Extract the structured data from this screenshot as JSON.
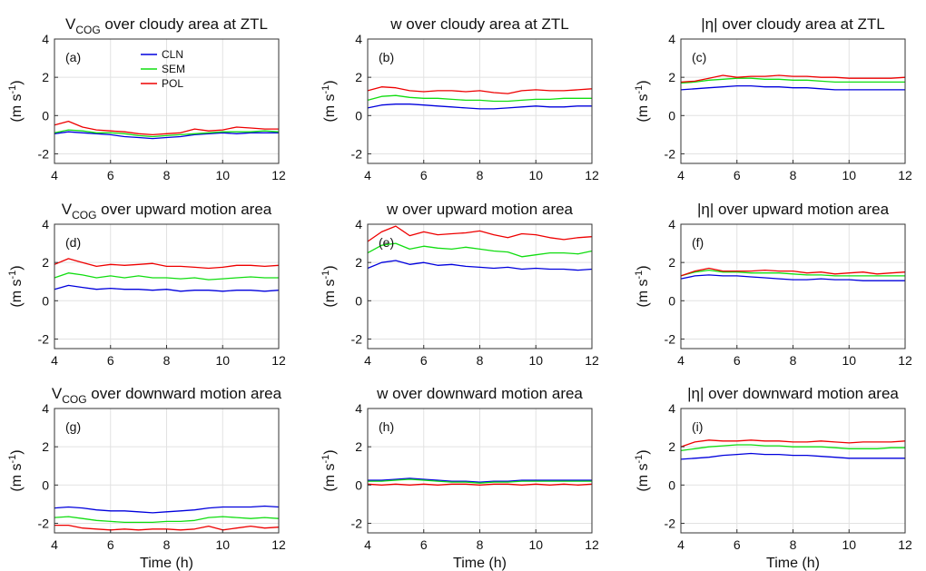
{
  "figure": {
    "xlabel": "Time (h)",
    "ylabel": "(m s-1)"
  },
  "legend": [
    "CLN",
    "SEM",
    "POL"
  ],
  "colors": {
    "CLN": "#0000dd",
    "SEM": "#11dd11",
    "POL": "#ee0000"
  },
  "chart_data": [
    {
      "type": "line",
      "panel": "(a)",
      "title": "V_COG over cloudy area at ZTL",
      "xlim": [
        4,
        12
      ],
      "ylim": [
        -2.5,
        4
      ],
      "xticks": [
        4,
        6,
        8,
        10,
        12
      ],
      "yticks": [
        -2,
        0,
        2,
        4
      ],
      "grid": true,
      "legend_placement": "top-center",
      "x": [
        4,
        4.5,
        5,
        5.5,
        6,
        6.5,
        7,
        7.5,
        8,
        8.5,
        9,
        9.5,
        10,
        10.5,
        11,
        11.5,
        12
      ],
      "series": [
        {
          "name": "CLN",
          "values": [
            -0.95,
            -0.85,
            -0.9,
            -0.95,
            -1.0,
            -1.1,
            -1.15,
            -1.2,
            -1.15,
            -1.1,
            -1.0,
            -0.95,
            -0.9,
            -0.95,
            -0.9,
            -0.9,
            -0.9
          ]
        },
        {
          "name": "SEM",
          "values": [
            -0.9,
            -0.75,
            -0.8,
            -0.9,
            -0.9,
            -0.95,
            -1.05,
            -1.1,
            -1.05,
            -1.0,
            -0.95,
            -0.9,
            -0.85,
            -0.85,
            -0.85,
            -0.8,
            -0.85
          ]
        },
        {
          "name": "POL",
          "values": [
            -0.5,
            -0.3,
            -0.6,
            -0.75,
            -0.8,
            -0.85,
            -0.95,
            -1.0,
            -0.95,
            -0.9,
            -0.7,
            -0.8,
            -0.75,
            -0.6,
            -0.65,
            -0.7,
            -0.7
          ]
        }
      ]
    },
    {
      "type": "line",
      "panel": "(b)",
      "title": "w over cloudy area at ZTL",
      "xlim": [
        4,
        12
      ],
      "ylim": [
        -2.5,
        4
      ],
      "xticks": [
        4,
        6,
        8,
        10,
        12
      ],
      "yticks": [
        -2,
        0,
        2,
        4
      ],
      "grid": true,
      "x": [
        4,
        4.5,
        5,
        5.5,
        6,
        6.5,
        7,
        7.5,
        8,
        8.5,
        9,
        9.5,
        10,
        10.5,
        11,
        11.5,
        12
      ],
      "series": [
        {
          "name": "CLN",
          "values": [
            0.4,
            0.55,
            0.6,
            0.6,
            0.55,
            0.5,
            0.45,
            0.4,
            0.35,
            0.35,
            0.4,
            0.45,
            0.5,
            0.45,
            0.45,
            0.5,
            0.5
          ]
        },
        {
          "name": "SEM",
          "values": [
            0.8,
            1.0,
            1.05,
            0.95,
            0.9,
            0.9,
            0.85,
            0.8,
            0.8,
            0.75,
            0.75,
            0.8,
            0.85,
            0.85,
            0.9,
            0.9,
            0.9
          ]
        },
        {
          "name": "POL",
          "values": [
            1.3,
            1.5,
            1.45,
            1.3,
            1.25,
            1.3,
            1.3,
            1.25,
            1.3,
            1.2,
            1.15,
            1.3,
            1.35,
            1.3,
            1.3,
            1.35,
            1.4
          ]
        }
      ]
    },
    {
      "type": "line",
      "panel": "(c)",
      "title": "|η| over cloudy area at ZTL",
      "xlim": [
        4,
        12
      ],
      "ylim": [
        -2.5,
        4
      ],
      "xticks": [
        4,
        6,
        8,
        10,
        12
      ],
      "yticks": [
        -2,
        0,
        2,
        4
      ],
      "grid": true,
      "x": [
        4,
        4.5,
        5,
        5.5,
        6,
        6.5,
        7,
        7.5,
        8,
        8.5,
        9,
        9.5,
        10,
        10.5,
        11,
        11.5,
        12
      ],
      "series": [
        {
          "name": "CLN",
          "values": [
            1.35,
            1.4,
            1.45,
            1.5,
            1.55,
            1.55,
            1.5,
            1.5,
            1.45,
            1.45,
            1.4,
            1.35,
            1.35,
            1.35,
            1.35,
            1.35,
            1.35
          ]
        },
        {
          "name": "SEM",
          "values": [
            1.7,
            1.75,
            1.85,
            1.9,
            1.95,
            1.95,
            1.9,
            1.9,
            1.85,
            1.85,
            1.8,
            1.75,
            1.75,
            1.75,
            1.75,
            1.75,
            1.75
          ]
        },
        {
          "name": "POL",
          "values": [
            1.75,
            1.8,
            1.95,
            2.1,
            2.0,
            2.05,
            2.05,
            2.1,
            2.05,
            2.05,
            2.0,
            2.0,
            1.95,
            1.95,
            1.95,
            1.95,
            2.0
          ]
        }
      ]
    },
    {
      "type": "line",
      "panel": "(d)",
      "title": "V_COG over upward motion area",
      "xlim": [
        4,
        12
      ],
      "ylim": [
        -2.5,
        4
      ],
      "xticks": [
        4,
        6,
        8,
        10,
        12
      ],
      "yticks": [
        -2,
        0,
        2,
        4
      ],
      "grid": true,
      "x": [
        4,
        4.5,
        5,
        5.5,
        6,
        6.5,
        7,
        7.5,
        8,
        8.5,
        9,
        9.5,
        10,
        10.5,
        11,
        11.5,
        12
      ],
      "series": [
        {
          "name": "CLN",
          "values": [
            0.6,
            0.8,
            0.7,
            0.6,
            0.65,
            0.6,
            0.6,
            0.55,
            0.6,
            0.5,
            0.55,
            0.55,
            0.5,
            0.55,
            0.55,
            0.5,
            0.55
          ]
        },
        {
          "name": "SEM",
          "values": [
            1.2,
            1.45,
            1.35,
            1.2,
            1.3,
            1.2,
            1.3,
            1.2,
            1.2,
            1.15,
            1.2,
            1.1,
            1.15,
            1.2,
            1.25,
            1.2,
            1.2
          ]
        },
        {
          "name": "POL",
          "values": [
            1.9,
            2.2,
            2.0,
            1.8,
            1.9,
            1.85,
            1.9,
            1.95,
            1.8,
            1.8,
            1.75,
            1.7,
            1.75,
            1.85,
            1.85,
            1.8,
            1.85
          ]
        }
      ]
    },
    {
      "type": "line",
      "panel": "(e)",
      "title": "w over upward motion area",
      "xlim": [
        4,
        12
      ],
      "ylim": [
        -2.5,
        4
      ],
      "xticks": [
        4,
        6,
        8,
        10,
        12
      ],
      "yticks": [
        -2,
        0,
        2,
        4
      ],
      "grid": true,
      "x": [
        4,
        4.5,
        5,
        5.5,
        6,
        6.5,
        7,
        7.5,
        8,
        8.5,
        9,
        9.5,
        10,
        10.5,
        11,
        11.5,
        12
      ],
      "series": [
        {
          "name": "CLN",
          "values": [
            1.7,
            2.0,
            2.1,
            1.9,
            2.0,
            1.85,
            1.9,
            1.8,
            1.75,
            1.7,
            1.75,
            1.65,
            1.7,
            1.65,
            1.65,
            1.6,
            1.65
          ]
        },
        {
          "name": "SEM",
          "values": [
            2.5,
            2.9,
            3.0,
            2.7,
            2.85,
            2.75,
            2.7,
            2.8,
            2.7,
            2.6,
            2.55,
            2.3,
            2.4,
            2.5,
            2.5,
            2.45,
            2.6
          ]
        },
        {
          "name": "POL",
          "values": [
            3.1,
            3.6,
            3.9,
            3.4,
            3.6,
            3.45,
            3.5,
            3.55,
            3.65,
            3.45,
            3.3,
            3.5,
            3.45,
            3.3,
            3.2,
            3.3,
            3.35
          ]
        }
      ]
    },
    {
      "type": "line",
      "panel": "(f)",
      "title": "|η| over upward motion area",
      "xlim": [
        4,
        12
      ],
      "ylim": [
        -2.5,
        4
      ],
      "xticks": [
        4,
        6,
        8,
        10,
        12
      ],
      "yticks": [
        -2,
        0,
        2,
        4
      ],
      "grid": true,
      "x": [
        4,
        4.5,
        5,
        5.5,
        6,
        6.5,
        7,
        7.5,
        8,
        8.5,
        9,
        9.5,
        10,
        10.5,
        11,
        11.5,
        12
      ],
      "series": [
        {
          "name": "CLN",
          "values": [
            1.15,
            1.3,
            1.35,
            1.3,
            1.3,
            1.25,
            1.2,
            1.15,
            1.1,
            1.1,
            1.15,
            1.1,
            1.1,
            1.05,
            1.05,
            1.05,
            1.05
          ]
        },
        {
          "name": "SEM",
          "values": [
            1.3,
            1.5,
            1.6,
            1.5,
            1.5,
            1.45,
            1.45,
            1.45,
            1.4,
            1.35,
            1.35,
            1.3,
            1.3,
            1.3,
            1.3,
            1.3,
            1.3
          ]
        },
        {
          "name": "POL",
          "values": [
            1.3,
            1.55,
            1.7,
            1.55,
            1.55,
            1.55,
            1.6,
            1.55,
            1.55,
            1.45,
            1.5,
            1.4,
            1.45,
            1.5,
            1.4,
            1.45,
            1.5
          ]
        }
      ]
    },
    {
      "type": "line",
      "panel": "(g)",
      "title": "V_COG over downward motion area",
      "xlim": [
        4,
        12
      ],
      "ylim": [
        -2.5,
        4
      ],
      "xticks": [
        4,
        6,
        8,
        10,
        12
      ],
      "yticks": [
        -2,
        0,
        2,
        4
      ],
      "grid": true,
      "x": [
        4,
        4.5,
        5,
        5.5,
        6,
        6.5,
        7,
        7.5,
        8,
        8.5,
        9,
        9.5,
        10,
        10.5,
        11,
        11.5,
        12
      ],
      "series": [
        {
          "name": "CLN",
          "values": [
            -1.2,
            -1.15,
            -1.2,
            -1.3,
            -1.35,
            -1.35,
            -1.4,
            -1.45,
            -1.4,
            -1.35,
            -1.3,
            -1.2,
            -1.15,
            -1.15,
            -1.15,
            -1.1,
            -1.15
          ]
        },
        {
          "name": "SEM",
          "values": [
            -1.7,
            -1.65,
            -1.75,
            -1.85,
            -1.9,
            -1.95,
            -1.95,
            -1.95,
            -1.9,
            -1.9,
            -1.85,
            -1.7,
            -1.65,
            -1.7,
            -1.75,
            -1.7,
            -1.75
          ]
        },
        {
          "name": "POL",
          "values": [
            -2.1,
            -2.1,
            -2.25,
            -2.3,
            -2.35,
            -2.3,
            -2.35,
            -2.3,
            -2.3,
            -2.35,
            -2.3,
            -2.15,
            -2.35,
            -2.25,
            -2.15,
            -2.25,
            -2.2
          ]
        }
      ]
    },
    {
      "type": "line",
      "panel": "(h)",
      "title": "w over downward motion area",
      "xlim": [
        4,
        12
      ],
      "ylim": [
        -2.5,
        4
      ],
      "xticks": [
        4,
        6,
        8,
        10,
        12
      ],
      "yticks": [
        -2,
        0,
        2,
        4
      ],
      "grid": true,
      "x": [
        4,
        4.5,
        5,
        5.5,
        6,
        6.5,
        7,
        7.5,
        8,
        8.5,
        9,
        9.5,
        10,
        10.5,
        11,
        11.5,
        12
      ],
      "series": [
        {
          "name": "CLN",
          "values": [
            0.25,
            0.25,
            0.3,
            0.35,
            0.3,
            0.25,
            0.2,
            0.2,
            0.15,
            0.2,
            0.2,
            0.25,
            0.25,
            0.25,
            0.25,
            0.25,
            0.25
          ]
        },
        {
          "name": "SEM",
          "values": [
            0.2,
            0.2,
            0.25,
            0.3,
            0.25,
            0.2,
            0.15,
            0.15,
            0.1,
            0.15,
            0.15,
            0.2,
            0.2,
            0.2,
            0.2,
            0.2,
            0.2
          ]
        },
        {
          "name": "POL",
          "values": [
            0.05,
            0.0,
            0.05,
            0.0,
            0.05,
            0.0,
            0.05,
            0.05,
            0.0,
            0.05,
            0.05,
            0.0,
            0.05,
            0.0,
            0.05,
            0.0,
            0.05
          ]
        }
      ]
    },
    {
      "type": "line",
      "panel": "(i)",
      "title": "|η| over downward motion area",
      "xlim": [
        4,
        12
      ],
      "ylim": [
        -2.5,
        4
      ],
      "xticks": [
        4,
        6,
        8,
        10,
        12
      ],
      "yticks": [
        -2,
        0,
        2,
        4
      ],
      "grid": true,
      "x": [
        4,
        4.5,
        5,
        5.5,
        6,
        6.5,
        7,
        7.5,
        8,
        8.5,
        9,
        9.5,
        10,
        10.5,
        11,
        11.5,
        12
      ],
      "series": [
        {
          "name": "CLN",
          "values": [
            1.35,
            1.4,
            1.45,
            1.55,
            1.6,
            1.65,
            1.6,
            1.6,
            1.55,
            1.55,
            1.5,
            1.45,
            1.4,
            1.4,
            1.4,
            1.4,
            1.4
          ]
        },
        {
          "name": "SEM",
          "values": [
            1.8,
            1.9,
            2.0,
            2.05,
            2.1,
            2.1,
            2.05,
            2.05,
            2.0,
            2.0,
            2.0,
            1.95,
            1.9,
            1.9,
            1.9,
            1.95,
            1.95
          ]
        },
        {
          "name": "POL",
          "values": [
            2.0,
            2.25,
            2.35,
            2.3,
            2.3,
            2.35,
            2.3,
            2.3,
            2.25,
            2.25,
            2.3,
            2.25,
            2.2,
            2.25,
            2.25,
            2.25,
            2.3
          ]
        }
      ]
    }
  ]
}
